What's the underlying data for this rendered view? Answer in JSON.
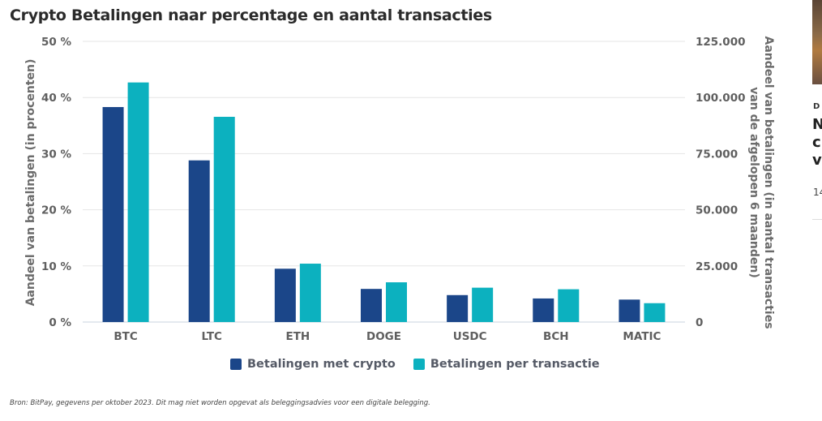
{
  "chart_data": {
    "type": "bar",
    "title": "Crypto Betalingen naar percentage en aantal transacties",
    "categories": [
      "BTC",
      "LTC",
      "ETH",
      "DOGE",
      "USDC",
      "BCH",
      "MATIC"
    ],
    "series": [
      {
        "name": "Betalingen met crypto",
        "axis": "left",
        "color": "#1b4689",
        "values": [
          38.3,
          28.8,
          9.5,
          5.9,
          4.8,
          4.2,
          4.0
        ]
      },
      {
        "name": "Betalingen per transactie",
        "axis": "right",
        "color": "#0cb1bf",
        "values": [
          106700,
          91400,
          26000,
          17700,
          15300,
          14600,
          8400
        ]
      }
    ],
    "y_left": {
      "label": "Aandeel van betalingen (in procenten)",
      "range": [
        0,
        50
      ],
      "ticks": [
        0,
        10,
        20,
        30,
        40,
        50
      ],
      "tick_labels": [
        "0 %",
        "10 %",
        "20 %",
        "30 %",
        "40 %",
        "50 %"
      ]
    },
    "y_right": {
      "label_line1": "Aandeel van betalingen (in aantal transacties",
      "label_line2": "van de afgelopen 6 maanden)",
      "range": [
        0,
        125000
      ],
      "ticks": [
        0,
        25000,
        50000,
        75000,
        100000,
        125000
      ],
      "tick_labels": [
        "0",
        "25.000",
        "50.000",
        "75.000",
        "100.000",
        "125.000"
      ]
    },
    "grid": true,
    "legend_position": "bottom",
    "legend": [
      "Betalingen met crypto",
      "Betalingen per transactie"
    ]
  },
  "footnote": "Bron: BitPay, gegevens per oktober 2023. Dit mag niet worden opgevat als beleggingsadvies voor een digitale belegging.",
  "sidebar": {
    "kicker": "D",
    "headline": "N\nc\nv",
    "date": "14"
  }
}
